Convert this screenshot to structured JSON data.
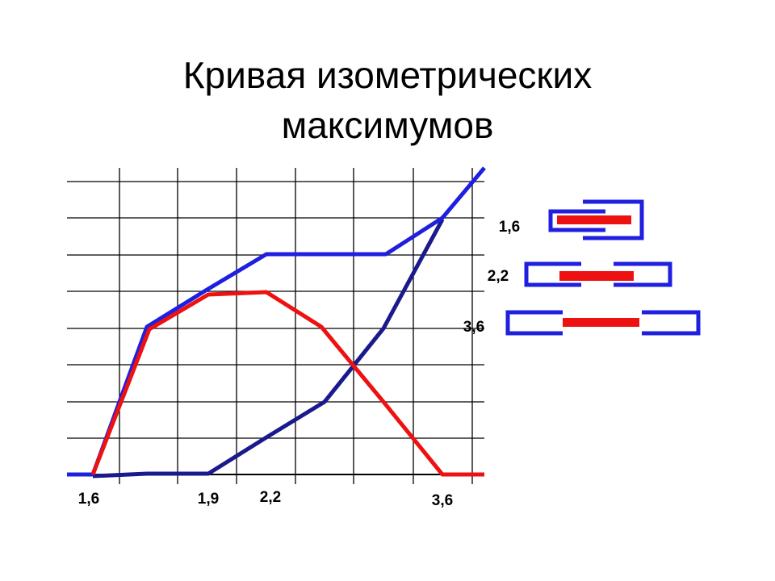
{
  "title": "Кривая изометрических максимумов",
  "x_labels": [
    "1,6",
    "1,9",
    "2,2",
    "3,6"
  ],
  "bar_labels": [
    "1,6",
    "2,2",
    "3,6"
  ]
}
